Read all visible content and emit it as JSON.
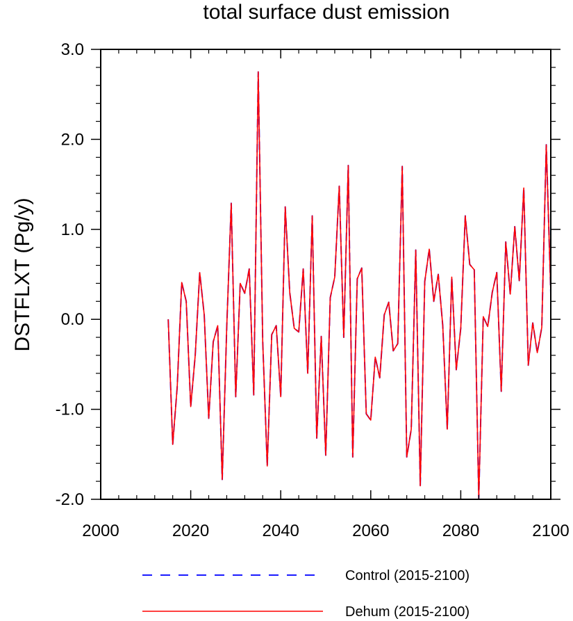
{
  "chart_data": {
    "type": "line",
    "title": "total surface dust emission",
    "xlabel": "",
    "ylabel": "DSTFLXT  (Pg/y)",
    "xlim": [
      2000,
      2100
    ],
    "ylim": [
      -2.0,
      3.0
    ],
    "x_ticks": [
      2000,
      2020,
      2040,
      2060,
      2080,
      2100
    ],
    "x_tick_labels": [
      "2000",
      "2020",
      "2040",
      "2060",
      "2080",
      "2100"
    ],
    "y_ticks": [
      -2.0,
      -1.0,
      0.0,
      1.0,
      2.0,
      3.0
    ],
    "y_tick_labels": [
      "-2.0",
      "-1.0",
      "0.0",
      "1.0",
      "2.0",
      "3.0"
    ],
    "grid": false,
    "legend_position": "bottom",
    "x": [
      2015,
      2016,
      2017,
      2018,
      2019,
      2020,
      2021,
      2022,
      2023,
      2024,
      2025,
      2026,
      2027,
      2028,
      2029,
      2030,
      2031,
      2032,
      2033,
      2034,
      2035,
      2036,
      2037,
      2038,
      2039,
      2040,
      2041,
      2042,
      2043,
      2044,
      2045,
      2046,
      2047,
      2048,
      2049,
      2050,
      2051,
      2052,
      2053,
      2054,
      2055,
      2056,
      2057,
      2058,
      2059,
      2060,
      2061,
      2062,
      2063,
      2064,
      2065,
      2066,
      2067,
      2068,
      2069,
      2070,
      2071,
      2072,
      2073,
      2074,
      2075,
      2076,
      2077,
      2078,
      2079,
      2080,
      2081,
      2082,
      2083,
      2084,
      2085,
      2086,
      2087,
      2088,
      2089,
      2090,
      2091,
      2092,
      2093,
      2094,
      2095,
      2096,
      2097,
      2098,
      2099,
      2100
    ],
    "series": [
      {
        "name": "Control (2015-2100)",
        "color": "#1a1aff",
        "style": "dashed",
        "values": [
          0.0,
          -1.39,
          -0.75,
          0.41,
          0.2,
          -0.97,
          -0.4,
          0.52,
          0.05,
          -1.1,
          -0.25,
          -0.07,
          -1.78,
          -0.09,
          1.29,
          -0.86,
          0.4,
          0.29,
          0.56,
          -0.84,
          2.75,
          -0.25,
          -1.63,
          -0.17,
          -0.07,
          -0.86,
          1.25,
          0.3,
          -0.1,
          -0.14,
          0.56,
          -0.6,
          1.15,
          -1.32,
          -0.19,
          -1.51,
          0.24,
          0.47,
          1.48,
          -0.2,
          1.71,
          -1.53,
          0.45,
          0.57,
          -1.05,
          -1.12,
          -0.42,
          -0.65,
          0.05,
          0.19,
          -0.35,
          -0.27,
          1.7,
          -1.53,
          -1.22,
          0.77,
          -1.85,
          0.42,
          0.78,
          0.2,
          0.5,
          -0.07,
          -1.22,
          0.47,
          -0.56,
          -0.1,
          1.15,
          0.61,
          0.55,
          -1.99,
          0.03,
          -0.08,
          0.3,
          0.52,
          -0.8,
          0.86,
          0.28,
          1.03,
          0.43,
          1.46,
          -0.51,
          -0.04,
          -0.37,
          -0.09,
          1.94,
          0.29
        ]
      },
      {
        "name": "Dehum (2015-2100)",
        "color": "#ff0000",
        "style": "solid",
        "values": [
          0.0,
          -1.39,
          -0.75,
          0.41,
          0.2,
          -0.97,
          -0.4,
          0.52,
          0.05,
          -1.1,
          -0.25,
          -0.07,
          -1.78,
          -0.09,
          1.29,
          -0.86,
          0.4,
          0.29,
          0.56,
          -0.84,
          2.75,
          -0.25,
          -1.63,
          -0.17,
          -0.07,
          -0.86,
          1.25,
          0.3,
          -0.1,
          -0.14,
          0.56,
          -0.6,
          1.15,
          -1.32,
          -0.19,
          -1.51,
          0.24,
          0.47,
          1.48,
          -0.2,
          1.71,
          -1.53,
          0.45,
          0.57,
          -1.05,
          -1.12,
          -0.42,
          -0.65,
          0.05,
          0.19,
          -0.35,
          -0.27,
          1.7,
          -1.53,
          -1.22,
          0.77,
          -1.85,
          0.42,
          0.78,
          0.2,
          0.5,
          -0.07,
          -1.22,
          0.47,
          -0.56,
          -0.1,
          1.15,
          0.61,
          0.55,
          -1.99,
          0.03,
          -0.08,
          0.3,
          0.52,
          -0.8,
          0.86,
          0.28,
          1.03,
          0.43,
          1.46,
          -0.51,
          -0.04,
          -0.37,
          -0.09,
          1.94,
          0.29
        ]
      }
    ]
  }
}
